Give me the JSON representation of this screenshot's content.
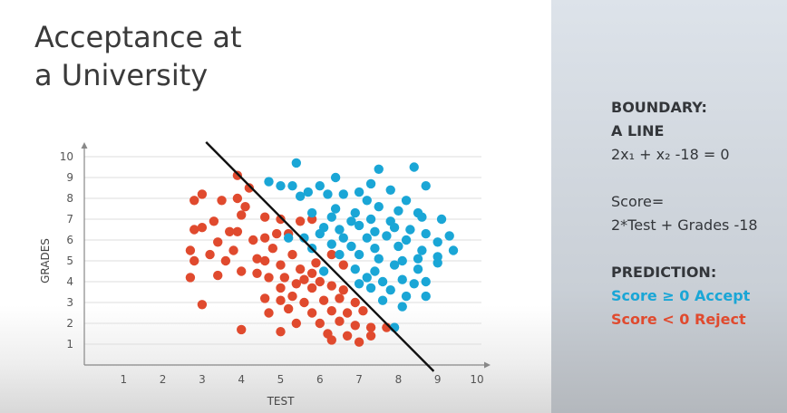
{
  "slide": {
    "title_line1": "Acceptance at",
    "title_line2": "a University"
  },
  "panel": {
    "boundary_heading": "BOUNDARY:",
    "boundary_subheading": "A LINE",
    "equation": "2x₁ + x₂ -18 = 0",
    "score_label": "Score=",
    "score_formula": "2*Test + Grades -18",
    "prediction_heading": "PREDICTION:",
    "accept_rule": "Score ≥ 0 Accept",
    "reject_rule": "Score < 0 Reject",
    "accept_color": "#1aa6d6",
    "reject_color": "#e04a2e"
  },
  "chart_data": {
    "type": "scatter",
    "xlabel": "TEST",
    "ylabel": "GRADES",
    "xlim": [
      0,
      10
    ],
    "ylim": [
      0,
      10
    ],
    "x_ticks": [
      1,
      2,
      3,
      4,
      5,
      6,
      7,
      8,
      9,
      10
    ],
    "y_ticks": [
      1,
      2,
      3,
      4,
      5,
      6,
      7,
      8,
      9,
      10
    ],
    "grid": true,
    "boundary_line": {
      "from": [
        3.1,
        10.7
      ],
      "to": [
        8.9,
        -0.3
      ]
    },
    "series": [
      {
        "color": "#e04a2e",
        "points": [
          [
            3.9,
            9.1
          ],
          [
            4.2,
            8.5
          ],
          [
            3.5,
            7.9
          ],
          [
            3.9,
            8.0
          ],
          [
            2.8,
            7.9
          ],
          [
            3.0,
            8.2
          ],
          [
            4.1,
            7.6
          ],
          [
            4.0,
            7.2
          ],
          [
            3.3,
            6.9
          ],
          [
            2.8,
            6.5
          ],
          [
            3.0,
            6.6
          ],
          [
            3.7,
            6.4
          ],
          [
            3.4,
            5.9
          ],
          [
            3.9,
            6.4
          ],
          [
            4.3,
            6.0
          ],
          [
            2.7,
            5.5
          ],
          [
            3.2,
            5.3
          ],
          [
            3.8,
            5.5
          ],
          [
            4.4,
            5.1
          ],
          [
            3.6,
            5.0
          ],
          [
            2.8,
            5.0
          ],
          [
            4.0,
            4.5
          ],
          [
            4.4,
            4.4
          ],
          [
            3.4,
            4.3
          ],
          [
            2.7,
            4.2
          ],
          [
            4.6,
            6.1
          ],
          [
            4.9,
            6.3
          ],
          [
            5.2,
            6.3
          ],
          [
            4.6,
            7.1
          ],
          [
            5.0,
            7.0
          ],
          [
            5.5,
            6.9
          ],
          [
            5.8,
            7.0
          ],
          [
            4.8,
            5.6
          ],
          [
            5.3,
            5.3
          ],
          [
            4.6,
            5.0
          ],
          [
            5.0,
            4.8
          ],
          [
            5.5,
            4.6
          ],
          [
            5.8,
            4.4
          ],
          [
            4.7,
            4.2
          ],
          [
            5.1,
            4.2
          ],
          [
            5.6,
            4.1
          ],
          [
            6.0,
            4.0
          ],
          [
            5.0,
            3.7
          ],
          [
            5.4,
            3.9
          ],
          [
            5.8,
            3.7
          ],
          [
            6.3,
            3.8
          ],
          [
            6.6,
            3.6
          ],
          [
            4.6,
            3.2
          ],
          [
            5.0,
            3.1
          ],
          [
            5.3,
            3.3
          ],
          [
            5.6,
            3.0
          ],
          [
            6.1,
            3.1
          ],
          [
            6.5,
            3.2
          ],
          [
            6.9,
            3.0
          ],
          [
            4.7,
            2.5
          ],
          [
            5.2,
            2.7
          ],
          [
            5.8,
            2.5
          ],
          [
            6.3,
            2.6
          ],
          [
            6.7,
            2.5
          ],
          [
            7.1,
            2.6
          ],
          [
            5.4,
            2.0
          ],
          [
            6.0,
            2.0
          ],
          [
            6.5,
            2.1
          ],
          [
            6.9,
            1.9
          ],
          [
            7.3,
            1.8
          ],
          [
            7.7,
            1.8
          ],
          [
            4.0,
            1.7
          ],
          [
            5.0,
            1.6
          ],
          [
            6.2,
            1.5
          ],
          [
            6.7,
            1.4
          ],
          [
            7.3,
            1.4
          ],
          [
            6.3,
            1.2
          ],
          [
            7.0,
            1.1
          ],
          [
            3.0,
            2.9
          ],
          [
            6.6,
            4.8
          ],
          [
            6.3,
            5.3
          ],
          [
            5.9,
            4.9
          ]
        ]
      },
      {
        "color": "#1aa6d6",
        "points": [
          [
            5.4,
            9.7
          ],
          [
            6.4,
            9.0
          ],
          [
            7.5,
            9.4
          ],
          [
            8.4,
            9.5
          ],
          [
            4.7,
            8.8
          ],
          [
            5.3,
            8.6
          ],
          [
            6.0,
            8.6
          ],
          [
            7.3,
            8.7
          ],
          [
            8.7,
            8.6
          ],
          [
            5.0,
            8.6
          ],
          [
            5.7,
            8.3
          ],
          [
            6.2,
            8.2
          ],
          [
            6.6,
            8.2
          ],
          [
            7.0,
            8.3
          ],
          [
            7.8,
            8.4
          ],
          [
            5.5,
            8.1
          ],
          [
            7.2,
            7.9
          ],
          [
            8.2,
            7.9
          ],
          [
            6.4,
            7.5
          ],
          [
            6.9,
            7.3
          ],
          [
            7.5,
            7.6
          ],
          [
            8.0,
            7.4
          ],
          [
            8.5,
            7.3
          ],
          [
            9.1,
            7.0
          ],
          [
            5.8,
            7.3
          ],
          [
            6.3,
            7.1
          ],
          [
            6.8,
            6.9
          ],
          [
            7.3,
            7.0
          ],
          [
            7.8,
            6.9
          ],
          [
            8.6,
            7.1
          ],
          [
            6.1,
            6.6
          ],
          [
            6.5,
            6.5
          ],
          [
            7.0,
            6.7
          ],
          [
            7.4,
            6.4
          ],
          [
            7.9,
            6.6
          ],
          [
            8.3,
            6.5
          ],
          [
            8.7,
            6.3
          ],
          [
            9.3,
            6.2
          ],
          [
            5.6,
            6.1
          ],
          [
            6.0,
            6.3
          ],
          [
            6.6,
            6.1
          ],
          [
            7.2,
            6.1
          ],
          [
            7.7,
            6.2
          ],
          [
            8.2,
            6.0
          ],
          [
            9.0,
            5.9
          ],
          [
            9.4,
            5.5
          ],
          [
            5.8,
            5.6
          ],
          [
            6.3,
            5.8
          ],
          [
            6.8,
            5.7
          ],
          [
            7.4,
            5.6
          ],
          [
            8.0,
            5.7
          ],
          [
            8.6,
            5.5
          ],
          [
            6.5,
            5.3
          ],
          [
            7.0,
            5.3
          ],
          [
            7.5,
            5.1
          ],
          [
            8.1,
            5.0
          ],
          [
            8.5,
            5.1
          ],
          [
            9.0,
            5.2
          ],
          [
            9.0,
            4.9
          ],
          [
            6.1,
            4.5
          ],
          [
            6.9,
            4.6
          ],
          [
            7.4,
            4.5
          ],
          [
            7.9,
            4.8
          ],
          [
            8.5,
            4.6
          ],
          [
            7.2,
            4.2
          ],
          [
            7.6,
            4.0
          ],
          [
            8.1,
            4.1
          ],
          [
            8.4,
            3.9
          ],
          [
            8.7,
            4.0
          ],
          [
            7.0,
            3.9
          ],
          [
            7.3,
            3.7
          ],
          [
            7.8,
            3.6
          ],
          [
            8.2,
            3.3
          ],
          [
            8.7,
            3.3
          ],
          [
            7.6,
            3.1
          ],
          [
            8.1,
            2.8
          ],
          [
            7.9,
            1.8
          ],
          [
            5.2,
            6.1
          ]
        ]
      }
    ]
  }
}
